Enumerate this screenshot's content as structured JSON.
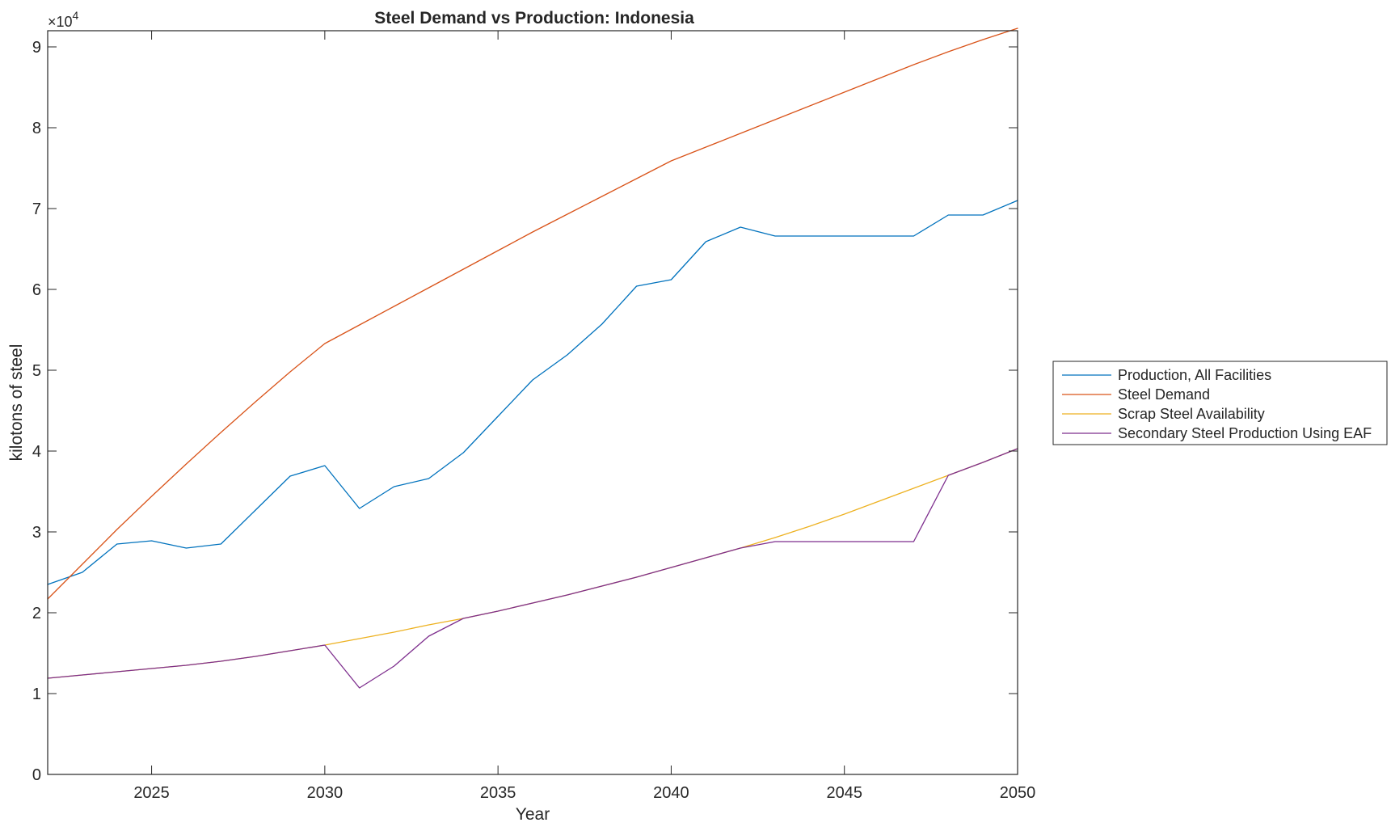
{
  "chart_data": {
    "type": "line",
    "title": "Steel Demand vs Production: Indonesia",
    "xlabel": "Year",
    "ylabel": "kilotons of steel",
    "xlim": [
      2022,
      2050
    ],
    "ylim": [
      0,
      92000
    ],
    "xticks": [
      2025,
      2030,
      2035,
      2040,
      2045,
      2050
    ],
    "yticks": [
      0,
      10000,
      20000,
      30000,
      40000,
      50000,
      60000,
      70000,
      80000,
      90000
    ],
    "ytick_labels": [
      "0",
      "1",
      "2",
      "3",
      "4",
      "5",
      "6",
      "7",
      "8",
      "9"
    ],
    "y_exponent": {
      "base": "×10",
      "power": "4"
    },
    "grid": false,
    "legend_position": "outside-right",
    "x": [
      2022,
      2023,
      2024,
      2025,
      2026,
      2027,
      2028,
      2029,
      2030,
      2031,
      2032,
      2033,
      2034,
      2035,
      2036,
      2037,
      2038,
      2039,
      2040,
      2041,
      2042,
      2043,
      2044,
      2045,
      2046,
      2047,
      2048,
      2049,
      2050
    ],
    "series": [
      {
        "name": "Production, All Facilities",
        "color": "#0072BD",
        "values": [
          23500,
          25000,
          28500,
          28900,
          28000,
          28500,
          32700,
          36900,
          38200,
          32900,
          35600,
          36600,
          39800,
          44300,
          48800,
          51900,
          55700,
          60400,
          61200,
          65900,
          67700,
          66600,
          66600,
          66600,
          66600,
          66600,
          69200,
          69200,
          71000
        ]
      },
      {
        "name": "Steel Demand",
        "color": "#D95319",
        "values": [
          21700,
          26000,
          30300,
          34400,
          38400,
          42300,
          46100,
          49800,
          53300,
          55600,
          57900,
          60200,
          62500,
          64800,
          67100,
          69300,
          71500,
          73700,
          75900,
          77600,
          79300,
          81000,
          82700,
          84400,
          86100,
          87800,
          89400,
          90900,
          92300
        ]
      },
      {
        "name": "Scrap Steel Availability",
        "color": "#EDB120",
        "values": [
          11900,
          12300,
          12700,
          13100,
          13500,
          14000,
          14600,
          15300,
          16000,
          16800,
          17600,
          18500,
          19300,
          20200,
          21200,
          22200,
          23300,
          24400,
          25600,
          26800,
          28000,
          29300,
          30700,
          32200,
          33800,
          35400,
          37000,
          38600,
          40300
        ]
      },
      {
        "name": "Secondary Steel Production Using EAF",
        "color": "#7E2F8E",
        "values": [
          11900,
          12300,
          12700,
          13100,
          13500,
          14000,
          14600,
          15300,
          16000,
          10700,
          13400,
          17100,
          19300,
          20200,
          21200,
          22200,
          23300,
          24400,
          25600,
          26800,
          28000,
          28800,
          28800,
          28800,
          28800,
          28800,
          37000,
          38600,
          40300
        ]
      }
    ]
  }
}
